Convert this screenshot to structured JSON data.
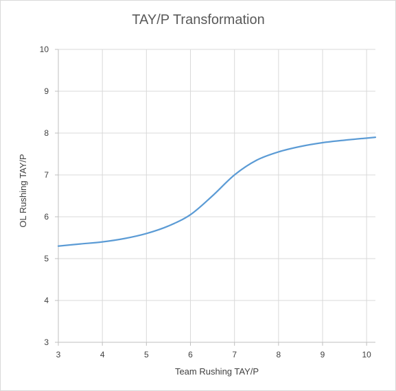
{
  "chart_data": {
    "type": "line",
    "title": "TAY/P Transformation",
    "xlabel": "Team Rushing TAY/P",
    "ylabel": "OL Rushing TAY/P",
    "xlim": [
      3,
      10.2
    ],
    "ylim": [
      3,
      10
    ],
    "x_ticks": [
      "3",
      "4",
      "5",
      "6",
      "7",
      "8",
      "9",
      "10"
    ],
    "y_ticks": [
      "3",
      "4",
      "5",
      "6",
      "7",
      "8",
      "9",
      "10"
    ],
    "grid": true,
    "legend": "none",
    "series": [
      {
        "color": "#5b9bd5",
        "x": [
          3,
          3.5,
          4,
          4.5,
          5,
          5.5,
          6,
          6.5,
          7,
          7.5,
          8,
          8.5,
          9,
          9.5,
          10,
          10.2
        ],
        "y": [
          5.3,
          5.35,
          5.4,
          5.48,
          5.6,
          5.78,
          6.05,
          6.5,
          7.0,
          7.35,
          7.55,
          7.68,
          7.77,
          7.83,
          7.88,
          7.9
        ]
      }
    ]
  },
  "colors": {
    "gridline": "#d9d9d9",
    "axis": "#bfbfbf",
    "series": "#5b9bd5"
  }
}
